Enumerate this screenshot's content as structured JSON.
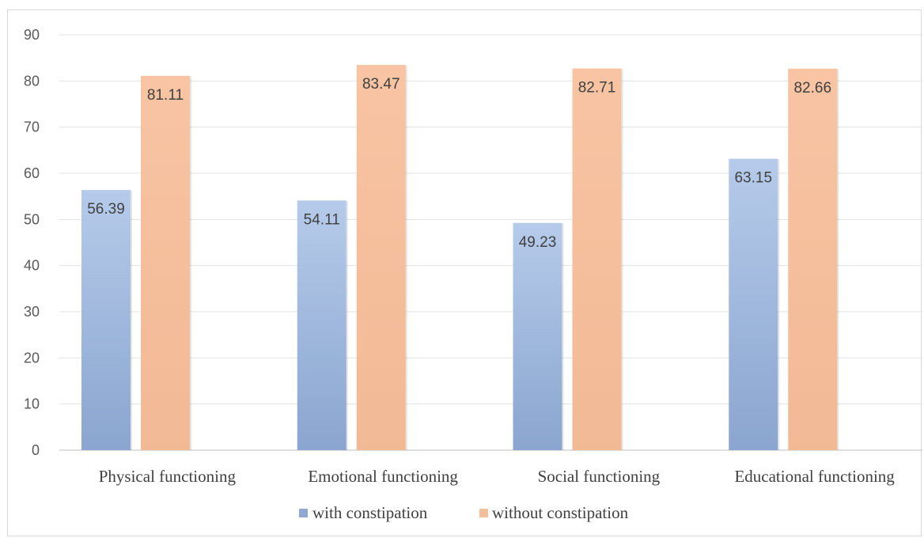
{
  "chart_data": {
    "type": "bar",
    "categories": [
      "Physical functioning",
      "Emotional functioning",
      "Social functioning",
      "Educational functioning"
    ],
    "series": [
      {
        "name": "with constipation",
        "values": [
          56.39,
          54.11,
          49.23,
          63.15
        ],
        "color": "#9fb7dc"
      },
      {
        "name": "without constipation",
        "values": [
          81.11,
          83.47,
          82.71,
          82.66
        ],
        "color": "#f5bf9c"
      }
    ],
    "ylim": [
      0,
      90
    ],
    "yticks": [
      0,
      10,
      20,
      30,
      40,
      50,
      60,
      70,
      80,
      90
    ],
    "grid": true,
    "legend": "bottom"
  }
}
